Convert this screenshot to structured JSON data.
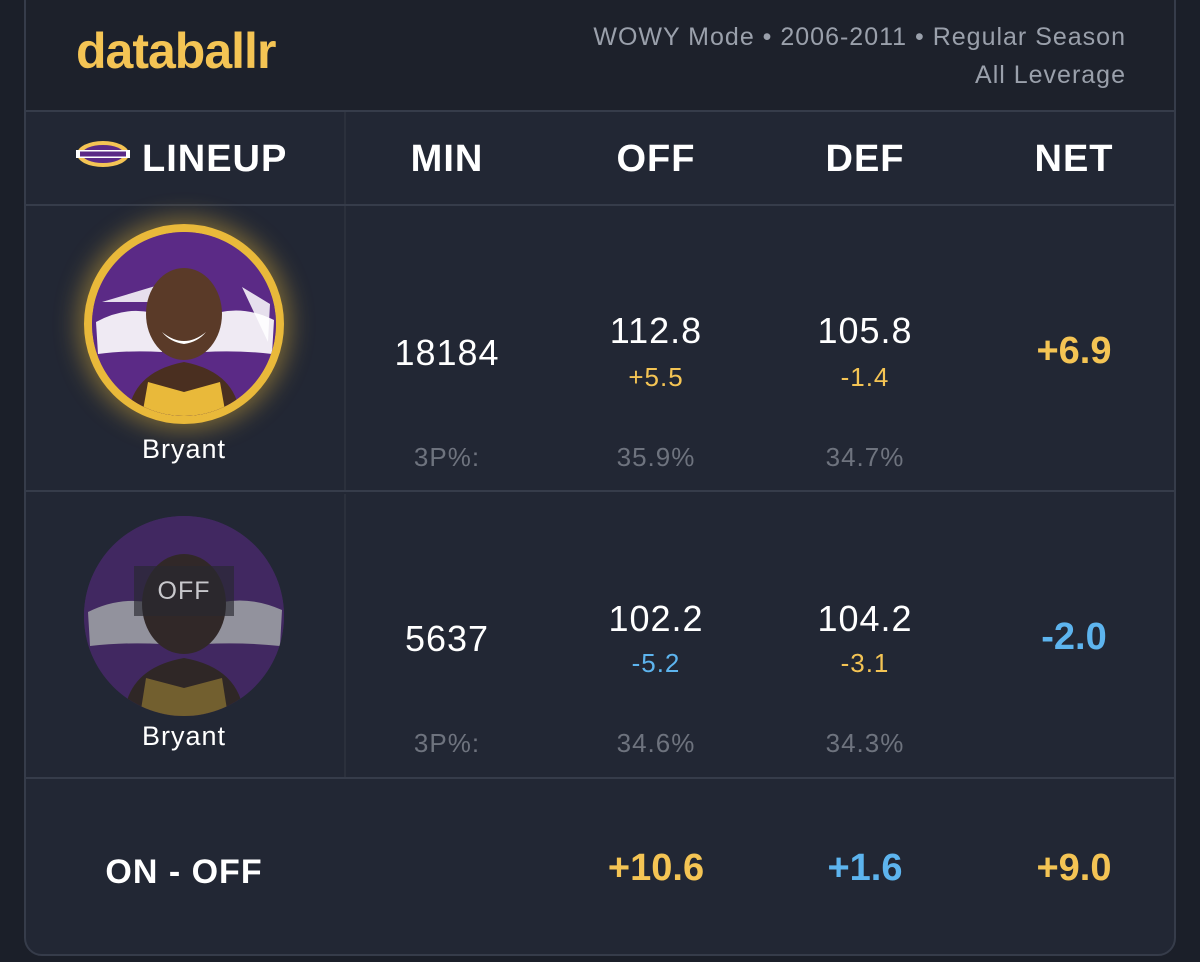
{
  "brand": "databallr",
  "meta": {
    "line1": "WOWY Mode • 2006-2011 • Regular Season",
    "line2": "All Leverage"
  },
  "columns": {
    "lineup": "LINEUP",
    "min": "MIN",
    "off": "OFF",
    "def": "DEF",
    "net": "NET"
  },
  "rows": [
    {
      "status": "on",
      "player": "Bryant",
      "min": "18184",
      "off": "112.8",
      "off_delta": "+5.5",
      "def": "105.8",
      "def_delta": "-1.4",
      "net": "+6.9",
      "threep_label": "3P%:",
      "off_3p": "35.9%",
      "def_3p": "34.7%"
    },
    {
      "status": "off",
      "badge": "OFF",
      "player": "Bryant",
      "min": "5637",
      "off": "102.2",
      "off_delta": "-5.2",
      "def": "104.2",
      "def_delta": "-3.1",
      "net": "-2.0",
      "threep_label": "3P%:",
      "off_3p": "34.6%",
      "def_3p": "34.3%"
    }
  ],
  "diff": {
    "label": "ON - OFF",
    "off": "+10.6",
    "def": "+1.6",
    "net": "+9.0"
  },
  "colors": {
    "gold": "#f4c454",
    "blue": "#5db4ee",
    "lakers_purple": "#5b2a86",
    "lakers_gold": "#e9b93a"
  },
  "icons": {
    "team_logo": "lakers-logo-icon",
    "player_photo": "player-photo"
  }
}
